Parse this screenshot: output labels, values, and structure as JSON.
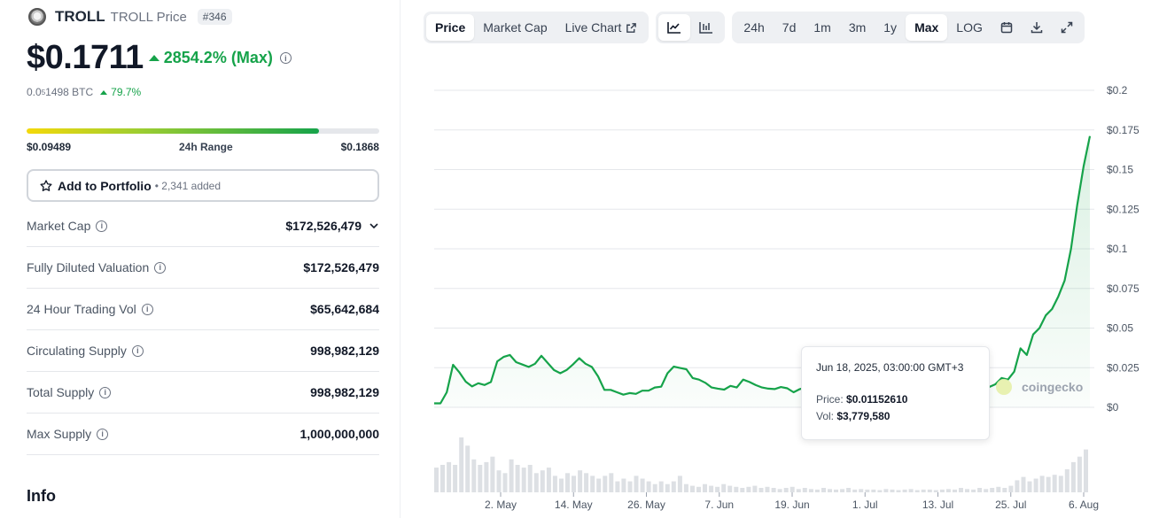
{
  "coin": {
    "name": "TROLL",
    "subtitle": "TROLL Price",
    "rank": "#346",
    "price": "$0.1711",
    "change": "2854.2% (Max)",
    "btc_price_prefix": "0.0",
    "btc_price_sub": "5",
    "btc_price_suffix": "1498 BTC",
    "btc_change": "79.7%",
    "range_low": "$0.09489",
    "range_label": "24h Range",
    "range_high": "$0.1868",
    "range_fill_fraction": 0.83
  },
  "portfolio": {
    "label": "Add to Portfolio",
    "added": "• 2,341 added"
  },
  "stats": [
    {
      "label": "Market Cap",
      "value": "$172,526,479"
    },
    {
      "label": "Fully Diluted Valuation",
      "value": "$172,526,479"
    },
    {
      "label": "24 Hour Trading Vol",
      "value": "$65,642,684"
    },
    {
      "label": "Circulating Supply",
      "value": "998,982,129"
    },
    {
      "label": "Total Supply",
      "value": "998,982,129"
    },
    {
      "label": "Max Supply",
      "value": "1,000,000,000"
    }
  ],
  "info_heading": "Info",
  "toolbar": {
    "view_tabs": [
      "Price",
      "Market Cap",
      "Live Chart"
    ],
    "active_view": "Price",
    "range_tabs": [
      "24h",
      "7d",
      "1m",
      "3m",
      "1y",
      "Max",
      "LOG"
    ],
    "active_range": "Max"
  },
  "tooltip": {
    "date": "Jun 18, 2025, 03:00:00 GMT+3",
    "price_label": "Price:",
    "price_value": "$0.01152610",
    "vol_label": "Vol:",
    "vol_value": "$3,779,580"
  },
  "watermark": "coingecko",
  "colors": {
    "line": "#16a34a",
    "up": "#16a34a",
    "grid": "#e5e7eb",
    "volume": "#d1d5db"
  },
  "chart_data": {
    "type": "line",
    "y_ticks": [
      "$0",
      "$0.025",
      "$0.05",
      "$0.075",
      "$0.1",
      "$0.125",
      "$0.15",
      "$0.175",
      "$0.2"
    ],
    "ylim": [
      0,
      0.2
    ],
    "x_ticks": [
      "2. May",
      "14. May",
      "26. May",
      "7. Jun",
      "19. Jun",
      "1. Jul",
      "13. Jul",
      "25. Jul",
      "6. Aug"
    ],
    "series": [
      {
        "values": [
          0.0025,
          0.0025,
          0.0095,
          0.0268,
          0.022,
          0.0162,
          0.0132,
          0.0152,
          0.0141,
          0.016,
          0.029,
          0.0318,
          0.033,
          0.0285,
          0.027,
          0.0255,
          0.0275,
          0.0325,
          0.028,
          0.0235,
          0.0215,
          0.0235,
          0.027,
          0.031,
          0.0275,
          0.0255,
          0.0195,
          0.011,
          0.011,
          0.0095,
          0.008,
          0.009,
          0.0085,
          0.0105,
          0.0105,
          0.0125,
          0.013,
          0.0215,
          0.0257,
          0.0248,
          0.024,
          0.0185,
          0.0175,
          0.0155,
          0.0125,
          0.0118,
          0.0112,
          0.0135,
          0.0125,
          0.0175,
          0.016,
          0.014,
          0.0125,
          0.0118,
          0.0115,
          0.0128,
          0.012,
          0.0095,
          0.0115,
          0.0125,
          0.0105,
          0.0115,
          0.0145,
          0.016,
          0.0135,
          0.0145,
          0.0165,
          0.0145,
          0.0135,
          0.0125,
          0.0135,
          0.0145,
          0.0175,
          0.0165,
          0.0135,
          0.0145,
          0.0165,
          0.0155,
          0.0145,
          0.0175,
          0.017,
          0.0145,
          0.0125,
          0.0155,
          0.0145,
          0.017,
          0.0165,
          0.0145,
          0.0128,
          0.0145,
          0.0185,
          0.0175,
          0.0225,
          0.0372,
          0.033,
          0.046,
          0.05,
          0.058,
          0.062,
          0.07,
          0.08,
          0.1,
          0.128,
          0.152,
          0.1711
        ]
      }
    ],
    "volume": [
      0.45,
      0.5,
      0.55,
      0.5,
      1.0,
      0.85,
      0.6,
      0.5,
      0.55,
      0.65,
      0.4,
      0.35,
      0.6,
      0.5,
      0.45,
      0.5,
      0.35,
      0.4,
      0.45,
      0.3,
      0.25,
      0.35,
      0.3,
      0.4,
      0.35,
      0.3,
      0.25,
      0.3,
      0.35,
      0.2,
      0.25,
      0.2,
      0.3,
      0.25,
      0.2,
      0.15,
      0.2,
      0.15,
      0.2,
      0.3,
      0.15,
      0.12,
      0.1,
      0.15,
      0.12,
      0.1,
      0.15,
      0.12,
      0.1,
      0.08,
      0.1,
      0.12,
      0.08,
      0.1,
      0.08,
      0.06,
      0.08,
      0.1,
      0.06,
      0.08,
      0.06,
      0.05,
      0.08,
      0.06,
      0.05,
      0.06,
      0.08,
      0.05,
      0.06,
      0.05,
      0.05,
      0.04,
      0.06,
      0.05,
      0.04,
      0.05,
      0.06,
      0.04,
      0.05,
      0.05,
      0.04,
      0.05,
      0.06,
      0.05,
      0.08,
      0.06,
      0.05,
      0.08,
      0.06,
      0.08,
      0.1,
      0.08,
      0.12,
      0.22,
      0.28,
      0.2,
      0.25,
      0.3,
      0.28,
      0.32,
      0.3,
      0.42,
      0.55,
      0.65,
      0.78
    ]
  }
}
